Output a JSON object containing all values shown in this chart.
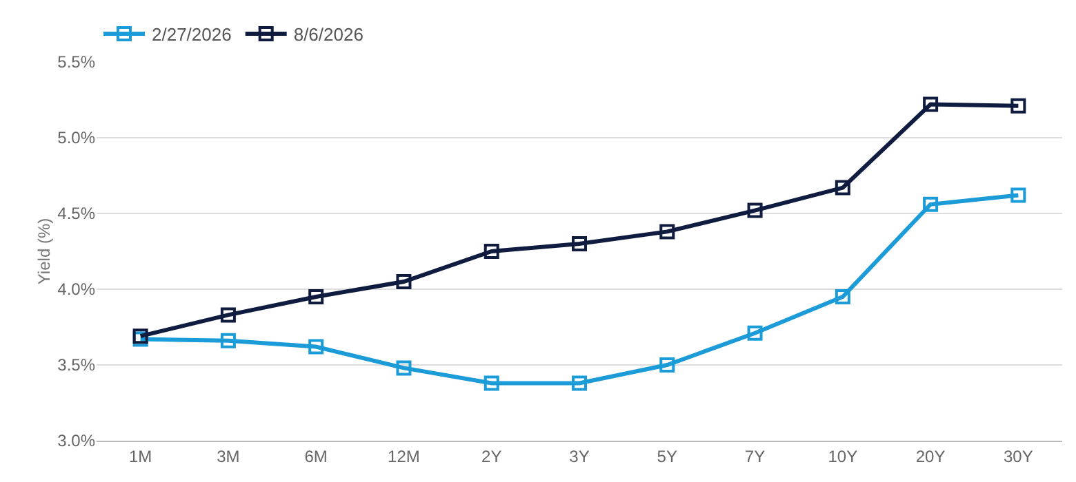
{
  "chart_data": {
    "type": "line",
    "ylabel": "Yield (%)",
    "categories": [
      "1M",
      "3M",
      "6M",
      "12M",
      "2Y",
      "3Y",
      "5Y",
      "7Y",
      "10Y",
      "20Y",
      "30Y"
    ],
    "series": [
      {
        "name": "2/27/2026",
        "color": "#1b9bd7",
        "values": [
          3.67,
          3.66,
          3.62,
          3.48,
          3.38,
          3.38,
          3.5,
          3.71,
          3.95,
          4.56,
          4.62
        ]
      },
      {
        "name": "8/6/2026",
        "color": "#0f1c3f",
        "values": [
          3.69,
          3.83,
          3.95,
          4.05,
          4.25,
          4.3,
          4.38,
          4.52,
          4.67,
          5.22,
          5.21
        ]
      }
    ],
    "ylim": [
      3.0,
      5.5
    ],
    "yticks": [
      {
        "value": 3.0,
        "label": "3.0%"
      },
      {
        "value": 3.5,
        "label": "3.5%"
      },
      {
        "value": 4.0,
        "label": "4.0%"
      },
      {
        "value": 4.5,
        "label": "4.5%"
      },
      {
        "value": 5.0,
        "label": "5.0%"
      },
      {
        "value": 5.5,
        "label": "5.5%"
      }
    ],
    "grid": "y",
    "legend": "top left",
    "marker": "square",
    "line_style": "solid"
  }
}
